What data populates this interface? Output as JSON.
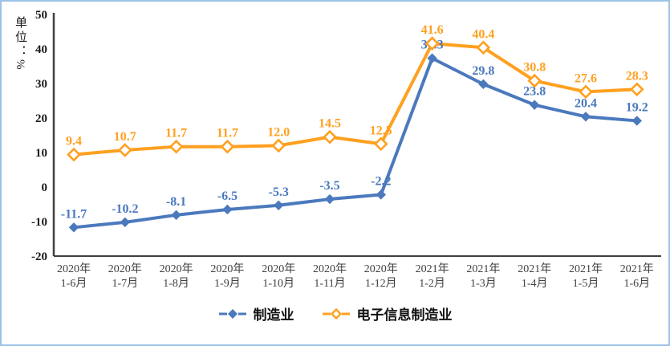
{
  "frame": {
    "border_color": "#9DC3E6",
    "background": "#FFFFFF"
  },
  "chart_data": {
    "type": "line",
    "title": "",
    "unit_label": "单位：%",
    "categories": [
      [
        "2020年",
        "1-6月"
      ],
      [
        "2020年",
        "1-7月"
      ],
      [
        "2020年",
        "1-8月"
      ],
      [
        "2020年",
        "1-9月"
      ],
      [
        "2020年",
        "1-10月"
      ],
      [
        "2020年",
        "1-11月"
      ],
      [
        "2020年",
        "1-12月"
      ],
      [
        "2021年",
        "1-2月"
      ],
      [
        "2021年",
        "1-3月"
      ],
      [
        "2021年",
        "1-4月"
      ],
      [
        "2021年",
        "1-5月"
      ],
      [
        "2021年",
        "1-6月"
      ]
    ],
    "series": [
      {
        "name": "制造业",
        "color": "#4B79BD",
        "marker": "filled-diamond",
        "values": [
          -11.7,
          -10.2,
          -8.1,
          -6.5,
          -5.3,
          -3.5,
          -2.2,
          37.3,
          29.8,
          23.8,
          20.4,
          19.2
        ]
      },
      {
        "name": "电子信息制造业",
        "color": "#FFA020",
        "marker": "open-diamond",
        "values": [
          9.4,
          10.7,
          11.7,
          11.7,
          12.0,
          14.5,
          12.5,
          41.6,
          40.4,
          30.8,
          27.6,
          28.3
        ]
      }
    ],
    "y_axis": {
      "min": -20,
      "max": 50,
      "step": 10,
      "ticks": [
        50,
        40,
        30,
        20,
        10,
        0,
        -10,
        -20
      ]
    },
    "grid": false,
    "legend_position": "bottom",
    "axis_color": "#404040",
    "data_labels_decimals": 1
  }
}
